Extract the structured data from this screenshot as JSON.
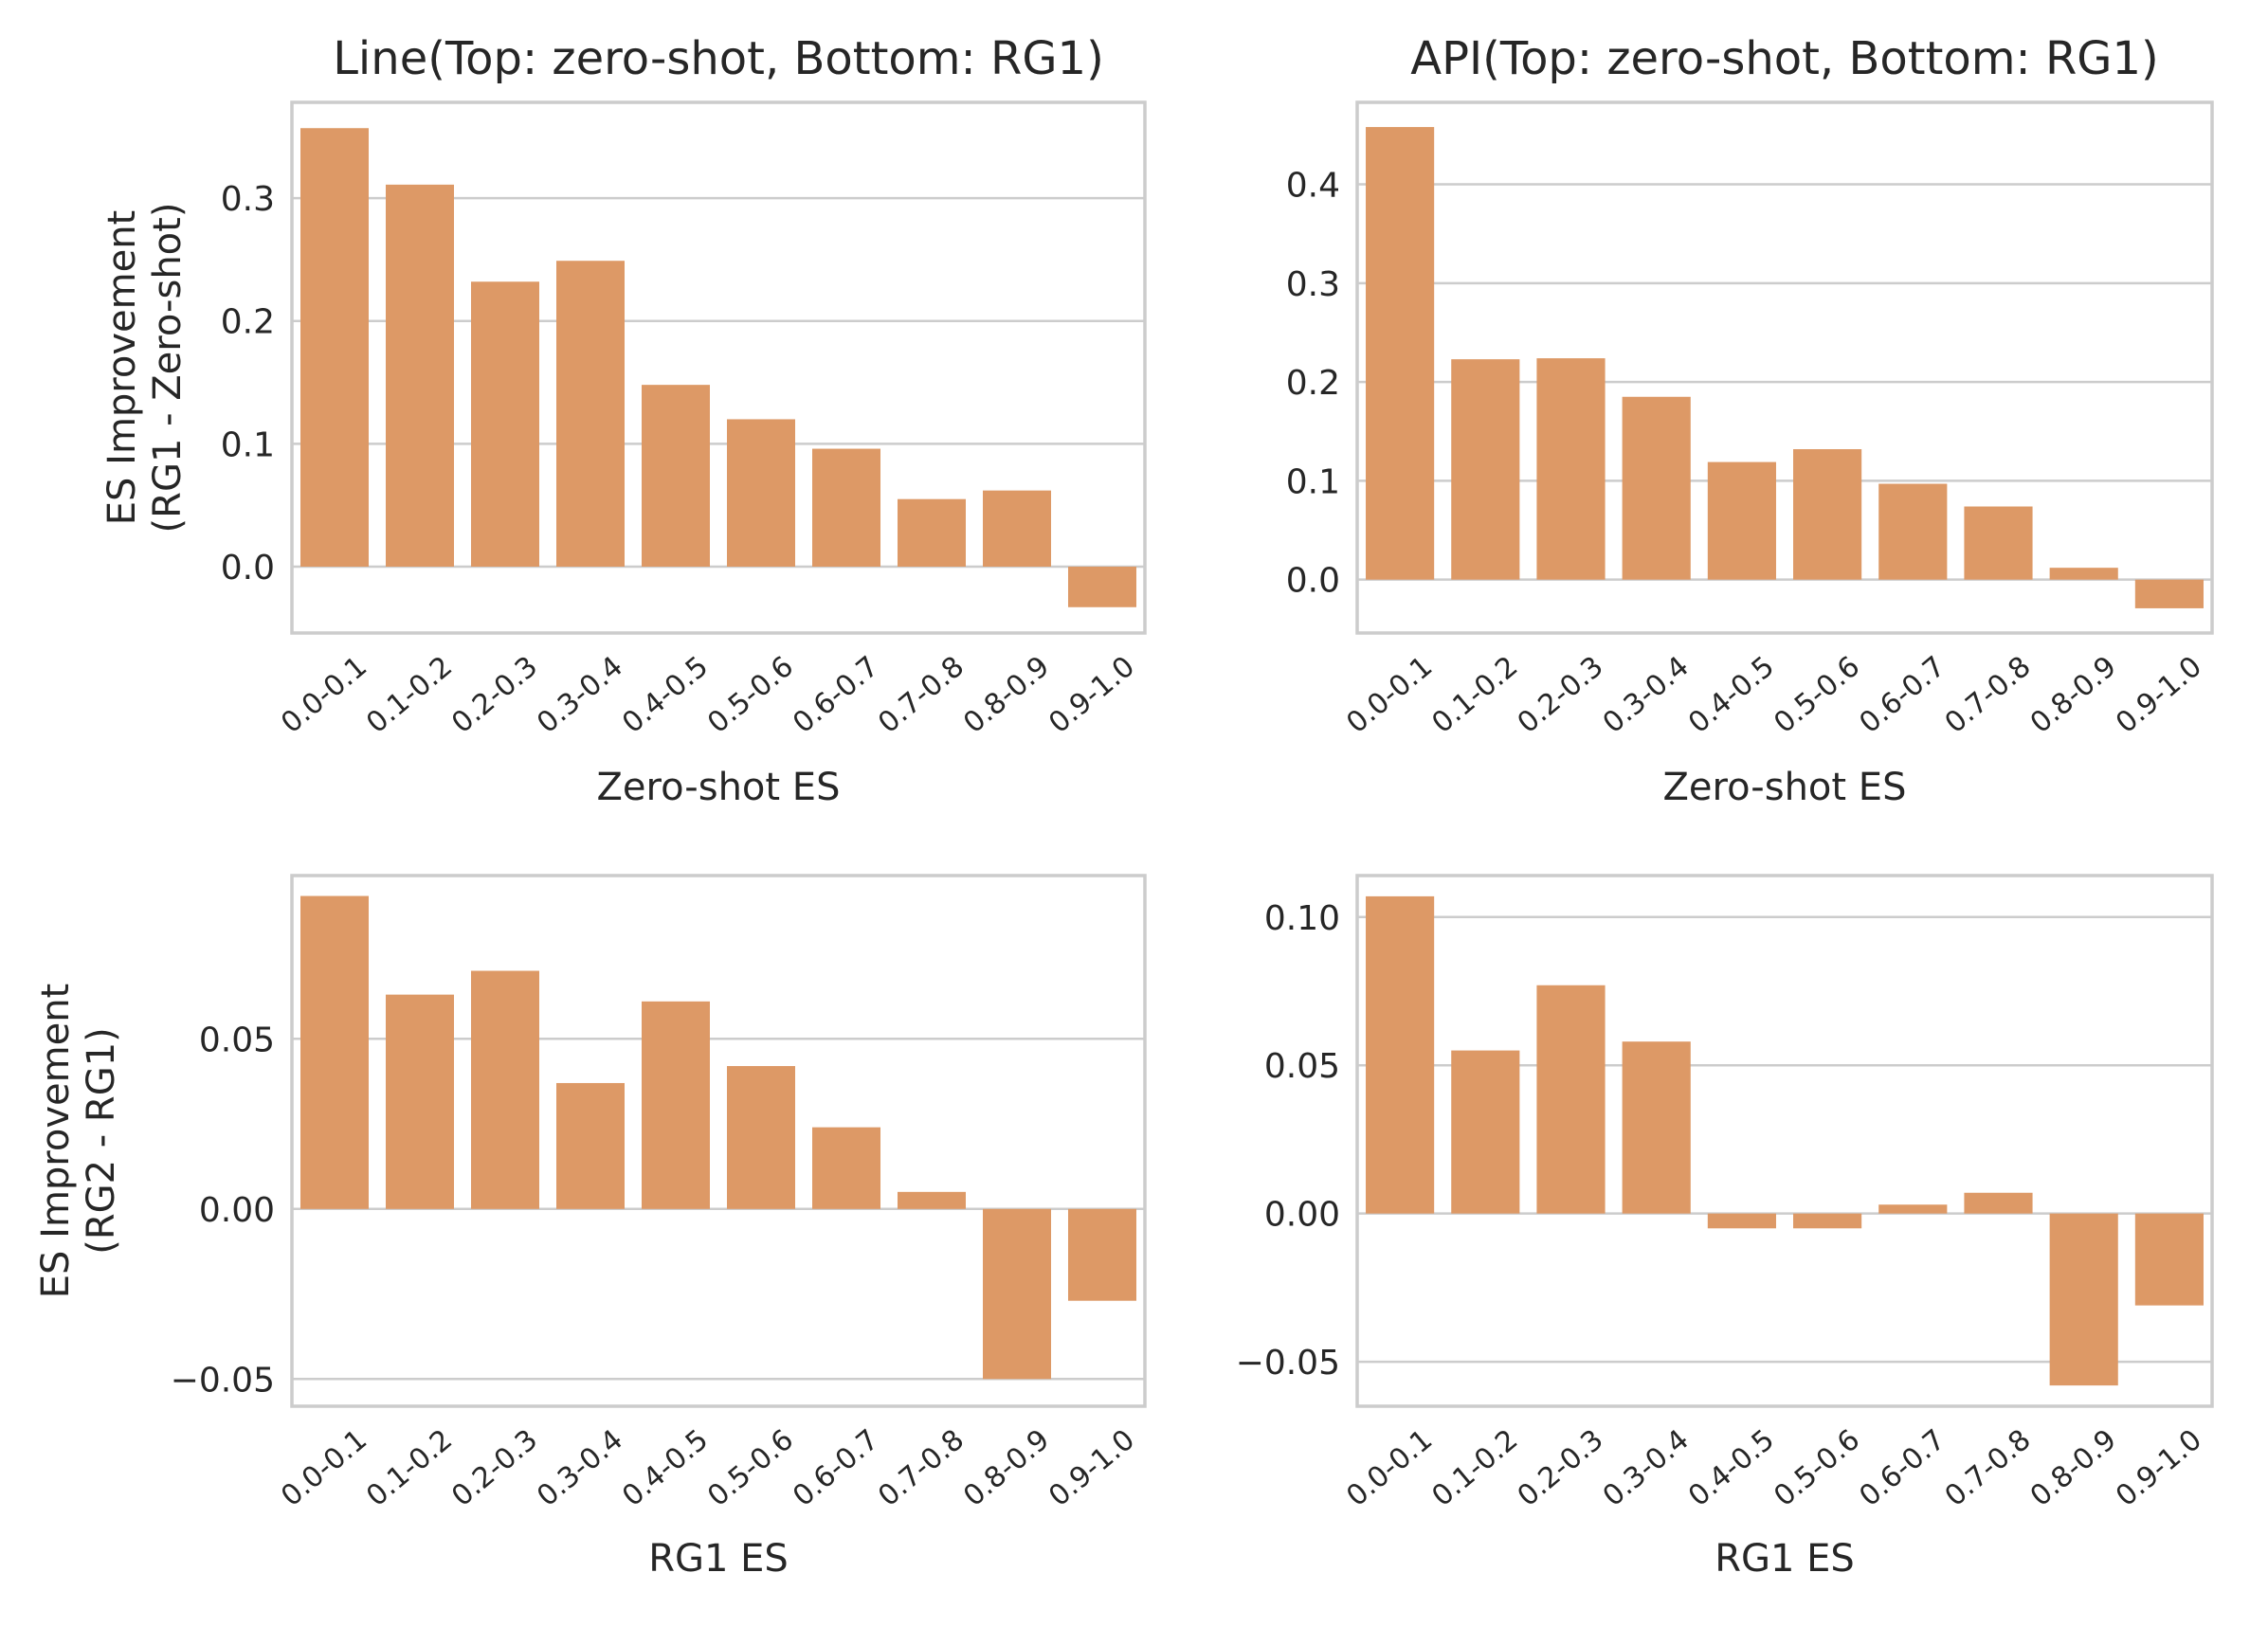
{
  "bar_color": "#dd9966",
  "grid_color": "#cccccc",
  "chart_data": [
    {
      "type": "bar",
      "title": "Line(Top: zero-shot, Bottom: RG1)",
      "xlabel": "Zero-shot ES",
      "ylabel": [
        "ES Improvement",
        "(RG1 - Zero-shot)"
      ],
      "categories": [
        "0.0-0.1",
        "0.1-0.2",
        "0.2-0.3",
        "0.3-0.4",
        "0.4-0.5",
        "0.5-0.6",
        "0.6-0.7",
        "0.7-0.8",
        "0.8-0.9",
        "0.9-1.0"
      ],
      "values": [
        0.357,
        0.311,
        0.232,
        0.249,
        0.148,
        0.12,
        0.096,
        0.055,
        0.062,
        -0.033
      ],
      "ylim": [
        -0.054,
        0.378
      ],
      "yticks": [
        0.0,
        0.1,
        0.2,
        0.3
      ],
      "ytick_labels": [
        "0.0",
        "0.1",
        "0.2",
        "0.3"
      ],
      "grid": true
    },
    {
      "type": "bar",
      "title": "API(Top: zero-shot, Bottom: RG1)",
      "xlabel": "Zero-shot ES",
      "ylabel": [],
      "categories": [
        "0.0-0.1",
        "0.1-0.2",
        "0.2-0.3",
        "0.3-0.4",
        "0.4-0.5",
        "0.5-0.6",
        "0.6-0.7",
        "0.7-0.8",
        "0.8-0.9",
        "0.9-1.0"
      ],
      "values": [
        0.458,
        0.223,
        0.224,
        0.185,
        0.119,
        0.132,
        0.097,
        0.074,
        0.012,
        -0.029
      ],
      "ylim": [
        -0.054,
        0.483
      ],
      "yticks": [
        0.0,
        0.1,
        0.2,
        0.3,
        0.4
      ],
      "ytick_labels": [
        "0.0",
        "0.1",
        "0.2",
        "0.3",
        "0.4"
      ],
      "grid": true
    },
    {
      "type": "bar",
      "title": "",
      "xlabel": "RG1 ES",
      "ylabel": [
        "ES Improvement",
        "(RG2 - RG1)"
      ],
      "categories": [
        "0.0-0.1",
        "0.1-0.2",
        "0.2-0.3",
        "0.3-0.4",
        "0.4-0.5",
        "0.5-0.6",
        "0.6-0.7",
        "0.7-0.8",
        "0.8-0.9",
        "0.9-1.0"
      ],
      "values": [
        0.092,
        0.063,
        0.07,
        0.037,
        0.061,
        0.042,
        0.024,
        0.005,
        -0.05,
        -0.027
      ],
      "ylim": [
        -0.058,
        0.098
      ],
      "yticks": [
        -0.05,
        0.0,
        0.05
      ],
      "ytick_labels": [
        "−0.05",
        "0.00",
        "0.05"
      ],
      "grid": true
    },
    {
      "type": "bar",
      "title": "",
      "xlabel": "RG1 ES",
      "ylabel": [],
      "categories": [
        "0.0-0.1",
        "0.1-0.2",
        "0.2-0.3",
        "0.3-0.4",
        "0.4-0.5",
        "0.5-0.6",
        "0.6-0.7",
        "0.7-0.8",
        "0.8-0.9",
        "0.9-1.0"
      ],
      "values": [
        0.107,
        0.055,
        0.077,
        0.058,
        -0.005,
        -0.005,
        0.003,
        0.007,
        -0.058,
        -0.031
      ],
      "ylim": [
        -0.065,
        0.114
      ],
      "yticks": [
        -0.05,
        0.0,
        0.05,
        0.1
      ],
      "ytick_labels": [
        "−0.05",
        "0.00",
        "0.05",
        "0.10"
      ],
      "grid": true
    }
  ]
}
